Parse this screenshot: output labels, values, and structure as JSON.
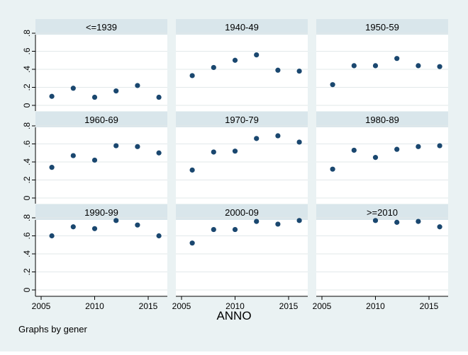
{
  "chart_data": {
    "type": "scatter",
    "xlabel": "ANNO",
    "note": "Graphs by gener",
    "xlim": [
      2004.8,
      2016.8
    ],
    "ylim": [
      -0.05,
      0.9
    ],
    "xticks": [
      2005,
      2010,
      2015
    ],
    "xtick_labels": [
      "2005",
      "2010",
      "2015"
    ],
    "yticks": [
      0,
      0.2,
      0.4,
      0.6,
      0.8
    ],
    "ytick_labels": [
      "0",
      ".2",
      ".4",
      ".6",
      ".8"
    ],
    "grid": true,
    "colors": {
      "outer_bg": "#eaf2f3",
      "plot_bg": "#ffffff",
      "panel_header": "#d9e6eb",
      "marker": "#1a476f",
      "grid": "#e2e8ea"
    },
    "panels": [
      {
        "title": "<=1939",
        "x": [
          2006,
          2008,
          2010,
          2012,
          2014,
          2016
        ],
        "y": [
          0.1,
          0.19,
          0.09,
          0.16,
          0.22,
          0.09
        ]
      },
      {
        "title": "1940-49",
        "x": [
          2006,
          2008,
          2010,
          2012,
          2014,
          2016
        ],
        "y": [
          0.33,
          0.42,
          0.5,
          0.56,
          0.39,
          0.38
        ]
      },
      {
        "title": "1950-59",
        "x": [
          2006,
          2008,
          2010,
          2012,
          2014,
          2016
        ],
        "y": [
          0.23,
          0.44,
          0.44,
          0.52,
          0.44,
          0.43
        ]
      },
      {
        "title": "1960-69",
        "x": [
          2006,
          2008,
          2010,
          2012,
          2014,
          2016
        ],
        "y": [
          0.34,
          0.47,
          0.42,
          0.58,
          0.57,
          0.5
        ]
      },
      {
        "title": "1970-79",
        "x": [
          2006,
          2008,
          2010,
          2012,
          2014,
          2016
        ],
        "y": [
          0.31,
          0.51,
          0.52,
          0.66,
          0.69,
          0.62
        ]
      },
      {
        "title": "1980-89",
        "x": [
          2006,
          2008,
          2010,
          2012,
          2014,
          2016
        ],
        "y": [
          0.32,
          0.53,
          0.45,
          0.54,
          0.57,
          0.58
        ]
      },
      {
        "title": "1990-99",
        "x": [
          2006,
          2008,
          2010,
          2012,
          2014,
          2016
        ],
        "y": [
          0.6,
          0.7,
          0.68,
          0.77,
          0.72,
          0.6
        ]
      },
      {
        "title": "2000-09",
        "x": [
          2006,
          2008,
          2010,
          2012,
          2014,
          2016
        ],
        "y": [
          0.52,
          0.67,
          0.67,
          0.76,
          0.73,
          0.77
        ]
      },
      {
        "title": ">=2010",
        "x": [
          2010,
          2012,
          2014,
          2016
        ],
        "y": [
          0.77,
          0.75,
          0.76,
          0.7
        ]
      }
    ]
  }
}
